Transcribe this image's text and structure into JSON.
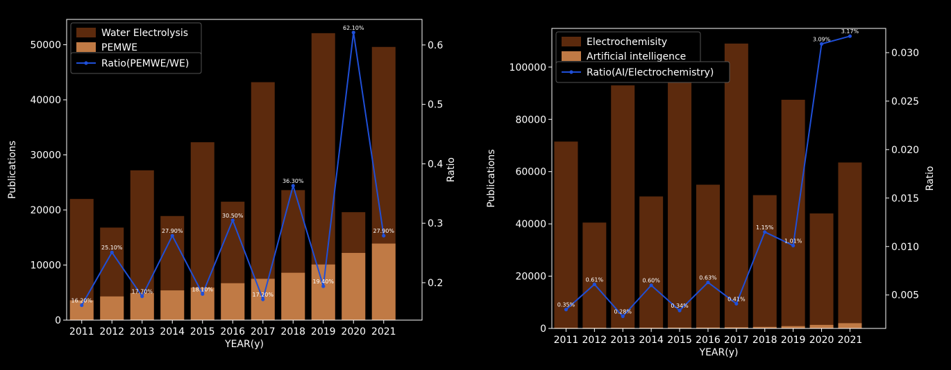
{
  "chart_data": [
    {
      "type": "bar+line",
      "ylabel": "Publications",
      "y2label": "Ratio",
      "xlabel": "YEAR(y)",
      "categories": [
        "2011",
        "2012",
        "2013",
        "2014",
        "2015",
        "2016",
        "2017",
        "2018",
        "2019",
        "2020",
        "2021"
      ],
      "ylim": [
        0,
        54600
      ],
      "yticks": [
        0,
        10000,
        20000,
        30000,
        40000,
        50000
      ],
      "ytick_labels": [
        "0",
        "10000",
        "20000",
        "30000",
        "40000",
        "50000"
      ],
      "y2lim": [
        0.137,
        0.643
      ],
      "y2ticks": [
        0.2,
        0.3,
        0.4,
        0.5,
        0.6
      ],
      "y2tick_labels": [
        "0.2",
        "0.3",
        "0.4",
        "0.5",
        "0.6"
      ],
      "series": [
        {
          "name": "Water Electrolysis",
          "kind": "bar",
          "color": "#5c2a0d",
          "values": [
            22000,
            16800,
            27200,
            18900,
            32300,
            21500,
            43200,
            23600,
            52100,
            19600,
            49600
          ]
        },
        {
          "name": "PEMWE",
          "kind": "bar",
          "color": "#c07a45",
          "values": [
            3600,
            4300,
            4900,
            5400,
            5900,
            6700,
            7500,
            8600,
            10100,
            12200,
            13900
          ]
        },
        {
          "name": "Ratio(PEMWE/WE)",
          "kind": "line",
          "axis": "right",
          "color": "#1f4fd8",
          "values": [
            0.162,
            0.251,
            0.177,
            0.279,
            0.181,
            0.305,
            0.172,
            0.363,
            0.194,
            0.621,
            0.279
          ],
          "labels": [
            "16.20%",
            "25.10%",
            "17.70%",
            "27.90%",
            "18.10%",
            "30.50%",
            "17.20%",
            "36.30%",
            "19.40%",
            "62.10%",
            "27.90%"
          ]
        }
      ],
      "legend": "top-left"
    },
    {
      "type": "bar+line",
      "ylabel": "Publications",
      "y2label": "Ratio",
      "xlabel": "YEAR(y)",
      "categories": [
        "2011",
        "2012",
        "2013",
        "2014",
        "2015",
        "2016",
        "2017",
        "2018",
        "2019",
        "2020",
        "2021"
      ],
      "ylim": [
        0,
        114800
      ],
      "yticks": [
        0,
        20000,
        40000,
        60000,
        80000,
        100000
      ],
      "ytick_labels": [
        "0",
        "20000",
        "40000",
        "60000",
        "80000",
        "100000"
      ],
      "y2lim": [
        0.00155,
        0.0325
      ],
      "y2ticks": [
        0.005,
        0.01,
        0.015,
        0.02,
        0.025,
        0.03
      ],
      "y2tick_labels": [
        "0.005",
        "0.010",
        "0.015",
        "0.020",
        "0.025",
        "0.030"
      ],
      "series": [
        {
          "name": "Electrochemisity",
          "kind": "bar",
          "color": "#5c2a0d",
          "values": [
            71500,
            40500,
            93000,
            50500,
            98000,
            55000,
            109000,
            51000,
            87500,
            44000,
            63500
          ]
        },
        {
          "name": "Artificial intelligence",
          "kind": "bar",
          "color": "#c07a45",
          "values": [
            250,
            250,
            260,
            300,
            330,
            350,
            450,
            590,
            880,
            1360,
            2010
          ]
        },
        {
          "name": "Ratio(AI/Electrochemistry)",
          "kind": "line",
          "axis": "right",
          "color": "#1f4fd8",
          "values": [
            0.0035,
            0.0061,
            0.0028,
            0.006,
            0.0034,
            0.0063,
            0.0041,
            0.0115,
            0.0101,
            0.0309,
            0.0317
          ],
          "labels": [
            "0.35%",
            "0.61%",
            "0.28%",
            "0.60%",
            "0.34%",
            "0.63%",
            "0.41%",
            "1.15%",
            "1.01%",
            "3.09%",
            "3.17%"
          ]
        }
      ],
      "legend": "top-left"
    }
  ]
}
